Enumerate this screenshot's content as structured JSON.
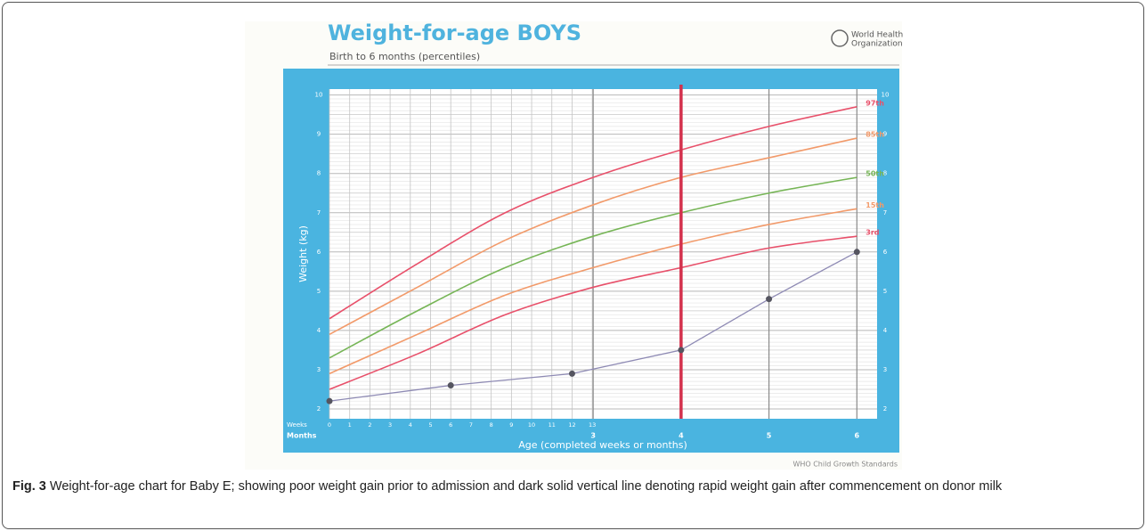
{
  "chart_data": {
    "type": "line",
    "title": "Weight-for-age BOYS",
    "subtitle": "Birth to 6 months (percentiles)",
    "organization": [
      "World Health",
      "Organization"
    ],
    "ylabel": "Weight (kg)",
    "xlabel": "Age (completed weeks or months)",
    "week_row_label": "Weeks",
    "month_row_label": "Months",
    "source": "WHO Child Growth Standards",
    "xlim": [
      0,
      6.23
    ],
    "ylim": [
      1.75,
      10.15
    ],
    "yticks": [
      2,
      3,
      4,
      5,
      6,
      7,
      8,
      9,
      10
    ],
    "week_ticks": [
      {
        "value": 0,
        "label": "0"
      },
      {
        "value": 0.23,
        "label": "1"
      },
      {
        "value": 0.46,
        "label": "2"
      },
      {
        "value": 0.69,
        "label": "3"
      },
      {
        "value": 0.92,
        "label": "4"
      },
      {
        "value": 1.15,
        "label": "5"
      },
      {
        "value": 1.38,
        "label": "6"
      },
      {
        "value": 1.61,
        "label": "7"
      },
      {
        "value": 1.84,
        "label": "8"
      },
      {
        "value": 2.07,
        "label": "9"
      },
      {
        "value": 2.3,
        "label": "10"
      },
      {
        "value": 2.53,
        "label": "11"
      },
      {
        "value": 2.76,
        "label": "12"
      },
      {
        "value": 2.99,
        "label": "13"
      }
    ],
    "month_ticks": [
      3,
      4,
      5,
      6
    ],
    "grid": true,
    "x": [
      0,
      1,
      2,
      3,
      4,
      5,
      6
    ],
    "series": [
      {
        "name": "97th",
        "color": "#e8506a",
        "values": [
          4.3,
          5.7,
          7.0,
          7.9,
          8.6,
          9.2,
          9.7
        ]
      },
      {
        "name": "85th",
        "color": "#f29a6a",
        "values": [
          3.9,
          5.1,
          6.3,
          7.2,
          7.9,
          8.4,
          8.9
        ]
      },
      {
        "name": "50th",
        "color": "#76b556",
        "values": [
          3.3,
          4.5,
          5.6,
          6.4,
          7.0,
          7.5,
          7.9
        ]
      },
      {
        "name": "15th",
        "color": "#f29a6a",
        "values": [
          2.9,
          3.9,
          4.9,
          5.6,
          6.2,
          6.7,
          7.1
        ]
      },
      {
        "name": "3rd",
        "color": "#e8506a",
        "values": [
          2.5,
          3.4,
          4.4,
          5.1,
          5.6,
          6.1,
          6.4
        ]
      }
    ],
    "points": {
      "color": "#8e8ab4",
      "marker_color": "#555560",
      "x": [
        0,
        1.38,
        2.76,
        4,
        5,
        6
      ],
      "y": [
        2.2,
        2.6,
        2.9,
        3.5,
        4.8,
        6.0
      ]
    },
    "marker_line": {
      "x": 4,
      "color": "#d3304c"
    }
  },
  "caption": {
    "label": "Fig. 3",
    "text": "Weight-for-age chart for Baby E; showing poor weight gain prior to admission and dark solid vertical line denoting rapid weight gain after commencement on donor milk"
  }
}
